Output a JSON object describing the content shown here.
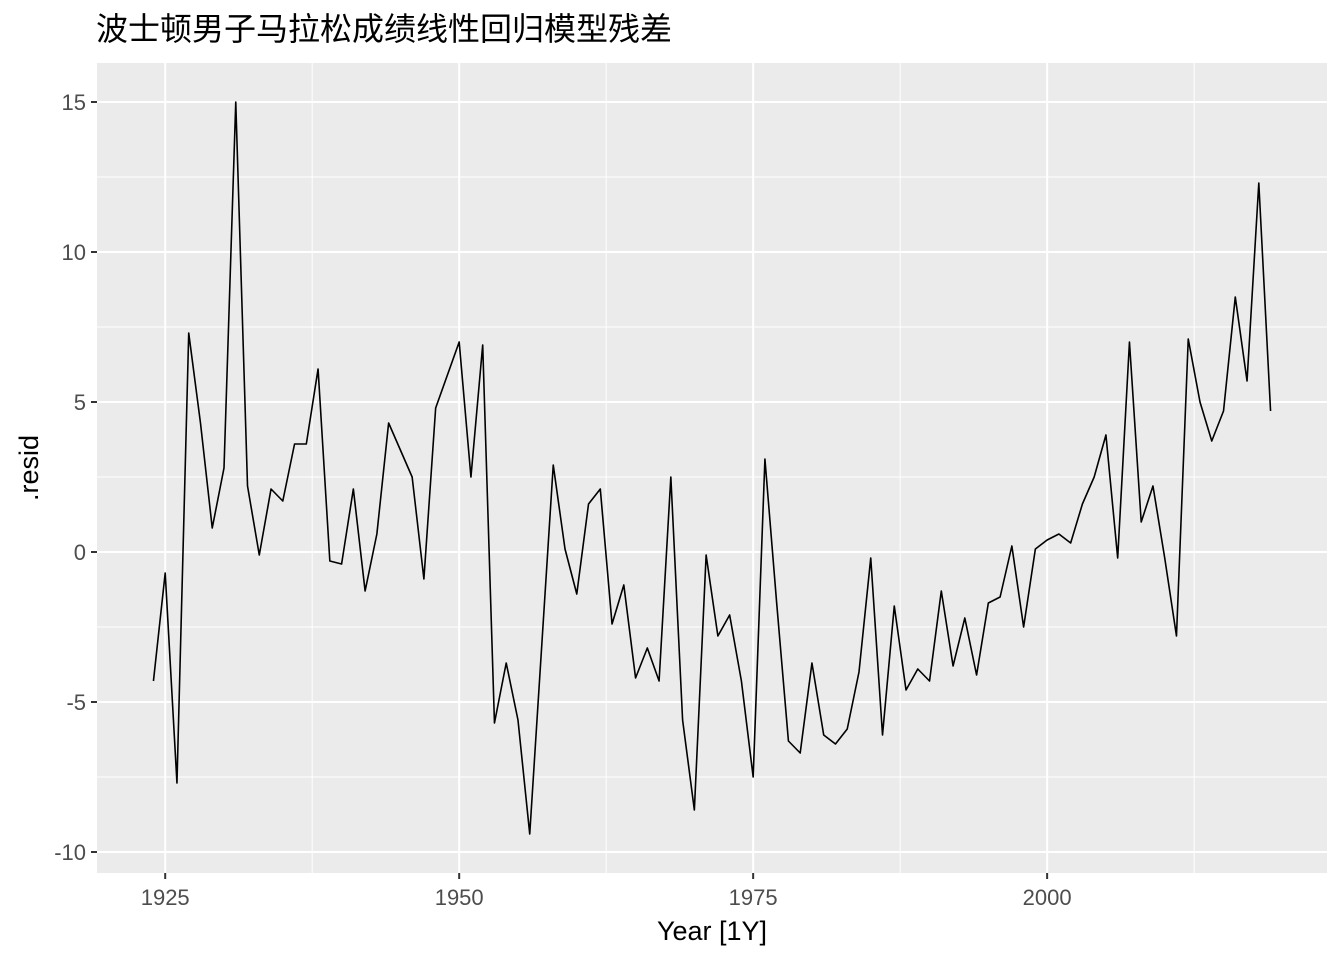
{
  "chart_data": {
    "type": "line",
    "title": "波士顿男子马拉松成绩线性回归模型残差",
    "xlabel": "Year [1Y]",
    "ylabel": ".resid",
    "xlim": [
      1919.2,
      2023.8
    ],
    "ylim": [
      -10.7,
      16.3
    ],
    "x_ticks": [
      1925,
      1950,
      1975,
      2000
    ],
    "x_tick_labels": [
      "1925",
      "1950",
      "1975",
      "2000"
    ],
    "x_minor_ticks": [
      1937.5,
      1962.5,
      1987.5,
      2012.5
    ],
    "y_ticks": [
      -10,
      -5,
      0,
      5,
      10,
      15
    ],
    "y_tick_labels": [
      "-10",
      "-5",
      "0",
      "5",
      "10",
      "15"
    ],
    "y_minor_ticks": [
      -7.5,
      -2.5,
      2.5,
      7.5,
      12.5
    ],
    "grid": true,
    "legend": "none",
    "series": [
      {
        "color": "#000000",
        "x": [
          1924,
          1925,
          1926,
          1927,
          1928,
          1929,
          1930,
          1931,
          1932,
          1933,
          1934,
          1935,
          1936,
          1937,
          1938,
          1939,
          1940,
          1941,
          1942,
          1943,
          1944,
          1946,
          1947,
          1948,
          1950,
          1951,
          1952,
          1953,
          1954,
          1955,
          1956,
          1958,
          1959,
          1960,
          1961,
          1962,
          1963,
          1964,
          1965,
          1966,
          1967,
          1968,
          1969,
          1970,
          1971,
          1972,
          1973,
          1974,
          1975,
          1976,
          1977,
          1978,
          1979,
          1980,
          1981,
          1982,
          1983,
          1984,
          1985,
          1986,
          1987,
          1988,
          1989,
          1990,
          1991,
          1992,
          1993,
          1994,
          1995,
          1996,
          1997,
          1998,
          1999,
          2000,
          2001,
          2002,
          2003,
          2004,
          2005,
          2006,
          2007,
          2008,
          2009,
          2010,
          2011,
          2012,
          2013,
          2014,
          2015,
          2016,
          2017,
          2018,
          2019
        ],
        "y": [
          -4.3,
          -0.7,
          -7.7,
          7.3,
          4.3,
          0.8,
          2.8,
          15.0,
          2.2,
          -0.1,
          2.1,
          1.7,
          3.6,
          3.6,
          6.1,
          -0.3,
          -0.4,
          2.1,
          -1.3,
          0.6,
          4.3,
          2.5,
          -0.9,
          4.8,
          7.0,
          2.5,
          6.9,
          -5.7,
          -3.7,
          -5.6,
          -9.4,
          2.9,
          0.1,
          -1.4,
          1.6,
          2.1,
          -2.4,
          -1.1,
          -4.2,
          -3.2,
          -4.3,
          2.5,
          -5.6,
          -8.6,
          -0.1,
          -2.8,
          -2.1,
          -4.3,
          -7.5,
          3.1,
          -1.7,
          -6.3,
          -6.7,
          -3.7,
          -6.1,
          -6.4,
          -5.9,
          -4.0,
          -0.2,
          -6.1,
          -1.8,
          -4.6,
          -3.9,
          -4.3,
          -1.3,
          -3.8,
          -2.2,
          -4.1,
          -1.7,
          -1.5,
          0.2,
          -2.5,
          0.1,
          0.4,
          0.6,
          0.3,
          1.6,
          2.5,
          3.9,
          -0.2,
          7.0,
          1.0,
          2.2,
          -0.2,
          -2.8,
          7.1,
          5.0,
          3.7,
          4.7,
          8.5,
          5.7,
          12.3,
          4.7
        ]
      }
    ]
  }
}
